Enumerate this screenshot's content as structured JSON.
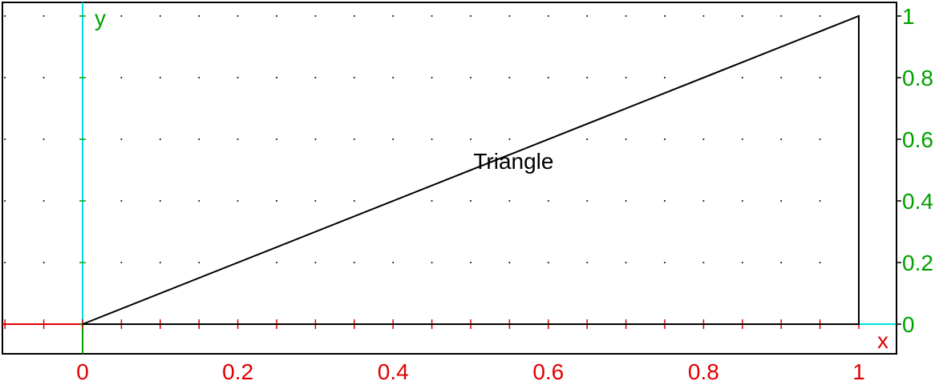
{
  "chart_data": {
    "type": "line",
    "title": "",
    "xlabel": "x",
    "ylabel": "y",
    "xlim": [
      -0.1,
      1.05
    ],
    "ylim": [
      -0.1,
      1.05
    ],
    "x_ticks": [
      0,
      0.2,
      0.4,
      0.6,
      0.8,
      1
    ],
    "x_tick_labels": [
      "0",
      "0.2",
      "0.4",
      "0.6",
      "0.8",
      "1"
    ],
    "y_ticks": [
      0,
      0.2,
      0.4,
      0.6,
      0.8,
      1
    ],
    "y_tick_labels": [
      "0",
      "0.2",
      "0.4",
      "0.6",
      "0.8",
      "1"
    ],
    "grid": "dotted",
    "series": [
      {
        "name": "Triangle",
        "closed": true,
        "points": [
          [
            0,
            0
          ],
          [
            1,
            1
          ],
          [
            1,
            0
          ]
        ]
      }
    ],
    "annotations": [
      {
        "text": "Triangle",
        "x": 0.55,
        "y": 0.53
      }
    ]
  },
  "colors": {
    "x_axis": "#e00000",
    "y_axis": "#00a000",
    "axis_lines": "#00e0e0",
    "shape": "#000000",
    "grid": "#000000"
  }
}
